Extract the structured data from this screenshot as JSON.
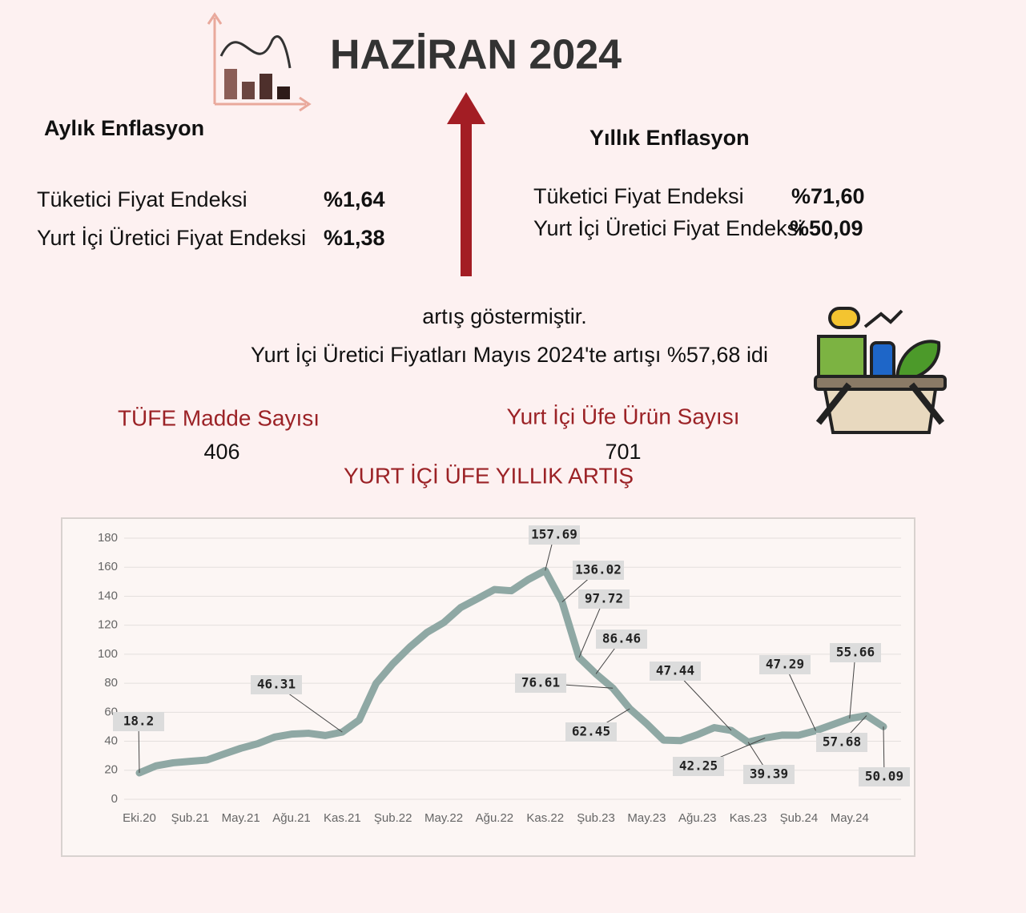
{
  "title": "HAZİRAN 2024",
  "monthly": {
    "heading": "Aylık Enflasyon",
    "rows": [
      [
        "Tüketici Fiyat Endeksi",
        "%1,64"
      ],
      [
        "Yurt İçi Üretici Fiyat Endeksi",
        "%1,38"
      ]
    ]
  },
  "annual": {
    "heading": "Yıllık Enflasyon",
    "rows": [
      [
        "Tüketici Fiyat Endeksi",
        "%71,60"
      ],
      [
        "Yurt İçi Üretici Fiyat Endeksi",
        "%50,09"
      ]
    ]
  },
  "notes": [
    "artış göstermiştir.",
    "Yurt İçi Üretici Fiyatları Mayıs 2024'te artışı %57,68 idi"
  ],
  "counts": [
    {
      "label": "TÜFE Madde Sayısı",
      "value": "406"
    },
    {
      "label": "Yurt İçi Üfe Ürün Sayısı",
      "value": "701"
    }
  ],
  "chart_data": {
    "type": "line",
    "title": "YURT İÇİ ÜFE  YILLIK ARTIŞ",
    "categories": [
      "Eki.20",
      null,
      null,
      "Şub.21",
      null,
      null,
      "May.21",
      null,
      null,
      "Ağu.21",
      null,
      null,
      "Kas.21",
      null,
      null,
      "Şub.22",
      null,
      null,
      "May.22",
      null,
      null,
      "Ağu.22",
      null,
      null,
      "Kas.22",
      null,
      null,
      "Şub.23",
      null,
      null,
      "May.23",
      null,
      null,
      "Ağu.23",
      null,
      null,
      "Kas.23",
      null,
      null,
      "Şub.24",
      null,
      null,
      "May.24",
      null,
      null
    ],
    "series": [
      {
        "name": "Yurt İçi ÜFE",
        "color": "#8fa8a4",
        "values": [
          18.2,
          23.11,
          25.15,
          26.16,
          27.09,
          31.2,
          35.17,
          38.33,
          42.89,
          44.92,
          45.52,
          43.96,
          46.31,
          54.62,
          79.89,
          93.53,
          105.01,
          114.97,
          121.82,
          132.16,
          138.31,
          144.61,
          143.75,
          151.5,
          157.69,
          136.02,
          97.72,
          86.46,
          76.61,
          62.45,
          52.11,
          40.76,
          40.42,
          44.5,
          49.41,
          47.44,
          39.39,
          42.25,
          44.22,
          44.2,
          47.29,
          51.47,
          55.66,
          57.68,
          50.09
        ],
        "value_labels": [
          "18.2",
          null,
          null,
          null,
          null,
          null,
          null,
          null,
          null,
          null,
          null,
          null,
          "46.31",
          null,
          null,
          null,
          null,
          null,
          null,
          null,
          null,
          null,
          null,
          null,
          "157.69",
          "136.02",
          "97.72",
          "86.46",
          "76.61",
          "62.45",
          null,
          null,
          null,
          null,
          null,
          "47.44",
          "39.39",
          "42.25",
          null,
          null,
          "47.29",
          null,
          "55.66",
          "57.68",
          "50.09"
        ]
      }
    ],
    "ylim": [
      0,
      180
    ],
    "yticks": [
      0,
      20,
      40,
      60,
      80,
      100,
      120,
      140,
      160,
      180
    ],
    "grid": true
  }
}
